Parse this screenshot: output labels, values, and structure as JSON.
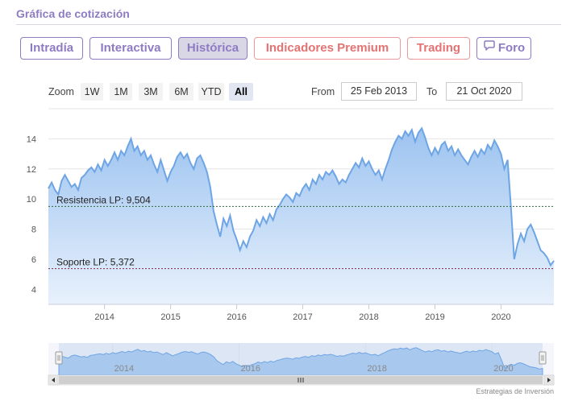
{
  "header": {
    "title": "Gráfica de cotización"
  },
  "tabs": [
    {
      "label": "Intradía",
      "active": false,
      "premium": false
    },
    {
      "label": "Interactiva",
      "active": false,
      "premium": false
    },
    {
      "label": "Histórica",
      "active": true,
      "premium": false
    },
    {
      "label": "Indicadores Premium",
      "active": false,
      "premium": true
    },
    {
      "label": "Trading",
      "active": false,
      "premium": true
    },
    {
      "label": "Foro",
      "active": false,
      "premium": false,
      "icon": "chat-bubble-icon"
    }
  ],
  "range_selector": {
    "zoom_label": "Zoom",
    "buttons": [
      "1W",
      "1M",
      "3M",
      "6M",
      "YTD",
      "All"
    ],
    "selected": "All",
    "from_label": "From",
    "from_value": "25 Feb 2013",
    "to_label": "To",
    "to_value": "21 Oct 2020"
  },
  "chart_data": {
    "type": "area",
    "x_start": 2013.15,
    "x_end": 2020.8,
    "ylim": [
      3,
      16
    ],
    "y_ticks": [
      "14",
      "12",
      "10",
      "8",
      "6",
      "4"
    ],
    "x_ticks": [
      "2014",
      "2015",
      "2016",
      "2017",
      "2018",
      "2019",
      "2020"
    ],
    "series": [
      {
        "points": [
          [
            2013.15,
            10.7
          ],
          [
            2013.2,
            11.1
          ],
          [
            2013.25,
            10.6
          ],
          [
            2013.3,
            10.3
          ],
          [
            2013.35,
            11.2
          ],
          [
            2013.4,
            11.6
          ],
          [
            2013.45,
            11.2
          ],
          [
            2013.5,
            10.8
          ],
          [
            2013.55,
            11.0
          ],
          [
            2013.6,
            10.6
          ],
          [
            2013.65,
            11.4
          ],
          [
            2013.7,
            11.6
          ],
          [
            2013.75,
            11.9
          ],
          [
            2013.8,
            12.1
          ],
          [
            2013.85,
            11.8
          ],
          [
            2013.9,
            12.3
          ],
          [
            2013.95,
            11.9
          ],
          [
            2014.0,
            12.6
          ],
          [
            2014.05,
            12.2
          ],
          [
            2014.1,
            12.6
          ],
          [
            2014.15,
            13.1
          ],
          [
            2014.2,
            12.6
          ],
          [
            2014.25,
            13.2
          ],
          [
            2014.3,
            12.9
          ],
          [
            2014.35,
            13.5
          ],
          [
            2014.4,
            14.0
          ],
          [
            2014.45,
            13.2
          ],
          [
            2014.5,
            13.5
          ],
          [
            2014.55,
            12.9
          ],
          [
            2014.6,
            13.2
          ],
          [
            2014.65,
            12.6
          ],
          [
            2014.7,
            12.9
          ],
          [
            2014.75,
            12.3
          ],
          [
            2014.8,
            11.8
          ],
          [
            2014.85,
            12.6
          ],
          [
            2014.9,
            11.9
          ],
          [
            2014.95,
            11.2
          ],
          [
            2015.0,
            11.8
          ],
          [
            2015.05,
            12.2
          ],
          [
            2015.1,
            12.8
          ],
          [
            2015.15,
            13.1
          ],
          [
            2015.2,
            12.7
          ],
          [
            2015.25,
            13.0
          ],
          [
            2015.3,
            12.4
          ],
          [
            2015.35,
            12.0
          ],
          [
            2015.4,
            12.7
          ],
          [
            2015.45,
            12.9
          ],
          [
            2015.5,
            12.4
          ],
          [
            2015.55,
            11.8
          ],
          [
            2015.6,
            10.8
          ],
          [
            2015.65,
            9.2
          ],
          [
            2015.7,
            8.3
          ],
          [
            2015.75,
            7.5
          ],
          [
            2015.8,
            8.7
          ],
          [
            2015.85,
            8.2
          ],
          [
            2015.9,
            8.9
          ],
          [
            2015.95,
            7.9
          ],
          [
            2016.0,
            7.3
          ],
          [
            2016.05,
            6.6
          ],
          [
            2016.1,
            7.2
          ],
          [
            2016.15,
            6.8
          ],
          [
            2016.2,
            7.5
          ],
          [
            2016.25,
            7.9
          ],
          [
            2016.3,
            8.6
          ],
          [
            2016.35,
            8.2
          ],
          [
            2016.4,
            8.8
          ],
          [
            2016.45,
            8.4
          ],
          [
            2016.5,
            9.0
          ],
          [
            2016.55,
            8.6
          ],
          [
            2016.6,
            9.3
          ],
          [
            2016.65,
            9.6
          ],
          [
            2016.7,
            10.0
          ],
          [
            2016.75,
            10.3
          ],
          [
            2016.8,
            10.1
          ],
          [
            2016.85,
            9.8
          ],
          [
            2016.9,
            10.4
          ],
          [
            2016.95,
            10.2
          ],
          [
            2017.0,
            10.7
          ],
          [
            2017.05,
            11.0
          ],
          [
            2017.1,
            10.6
          ],
          [
            2017.15,
            11.3
          ],
          [
            2017.2,
            11.0
          ],
          [
            2017.25,
            11.6
          ],
          [
            2017.3,
            11.3
          ],
          [
            2017.35,
            11.8
          ],
          [
            2017.4,
            11.6
          ],
          [
            2017.45,
            11.9
          ],
          [
            2017.5,
            11.5
          ],
          [
            2017.55,
            11.0
          ],
          [
            2017.6,
            11.3
          ],
          [
            2017.65,
            11.1
          ],
          [
            2017.7,
            11.6
          ],
          [
            2017.75,
            12.0
          ],
          [
            2017.8,
            12.4
          ],
          [
            2017.85,
            12.1
          ],
          [
            2017.9,
            12.7
          ],
          [
            2017.95,
            12.2
          ],
          [
            2018.0,
            12.5
          ],
          [
            2018.05,
            12.0
          ],
          [
            2018.1,
            11.6
          ],
          [
            2018.15,
            11.9
          ],
          [
            2018.2,
            11.3
          ],
          [
            2018.25,
            12.0
          ],
          [
            2018.3,
            12.6
          ],
          [
            2018.35,
            13.3
          ],
          [
            2018.4,
            13.8
          ],
          [
            2018.45,
            14.2
          ],
          [
            2018.5,
            14.0
          ],
          [
            2018.55,
            14.5
          ],
          [
            2018.6,
            14.2
          ],
          [
            2018.65,
            14.6
          ],
          [
            2018.7,
            13.8
          ],
          [
            2018.75,
            14.4
          ],
          [
            2018.8,
            14.7
          ],
          [
            2018.85,
            14.1
          ],
          [
            2018.9,
            13.4
          ],
          [
            2018.95,
            12.9
          ],
          [
            2019.0,
            13.4
          ],
          [
            2019.05,
            13.0
          ],
          [
            2019.1,
            13.6
          ],
          [
            2019.15,
            13.8
          ],
          [
            2019.2,
            13.2
          ],
          [
            2019.25,
            13.5
          ],
          [
            2019.3,
            12.9
          ],
          [
            2019.35,
            13.3
          ],
          [
            2019.4,
            12.9
          ],
          [
            2019.45,
            12.6
          ],
          [
            2019.5,
            12.3
          ],
          [
            2019.55,
            12.8
          ],
          [
            2019.6,
            13.2
          ],
          [
            2019.65,
            12.8
          ],
          [
            2019.7,
            13.3
          ],
          [
            2019.75,
            13.0
          ],
          [
            2019.8,
            13.6
          ],
          [
            2019.85,
            13.3
          ],
          [
            2019.9,
            13.9
          ],
          [
            2019.95,
            13.5
          ],
          [
            2020.0,
            13.0
          ],
          [
            2020.05,
            12.0
          ],
          [
            2020.1,
            12.6
          ],
          [
            2020.15,
            9.5
          ],
          [
            2020.2,
            6.0
          ],
          [
            2020.25,
            7.0
          ],
          [
            2020.3,
            7.7
          ],
          [
            2020.35,
            7.2
          ],
          [
            2020.4,
            8.0
          ],
          [
            2020.45,
            8.3
          ],
          [
            2020.5,
            7.8
          ],
          [
            2020.55,
            7.2
          ],
          [
            2020.6,
            6.6
          ],
          [
            2020.65,
            6.4
          ],
          [
            2020.7,
            6.1
          ],
          [
            2020.75,
            5.6
          ],
          [
            2020.8,
            5.9
          ]
        ]
      }
    ],
    "plot_lines": [
      {
        "label": "Resistencia LP: 9,504",
        "value": 9.504,
        "color": "#2e6b3a"
      },
      {
        "label": "Soporte LP: 5,372",
        "value": 5.372,
        "color": "#7a2e4a"
      }
    ]
  },
  "navigator": {
    "x_ticks": [
      "2014",
      "2016",
      "2018",
      "2020"
    ],
    "scroll_grip": "grip-lines-icon"
  },
  "credits": "Estrategias de Inversión",
  "colors": {
    "accent": "#8e7cc3",
    "premium": "#e57373",
    "line": "#6ea5e5",
    "fill_top": "#9cc3f0",
    "fill_bottom": "#e8f1fc"
  }
}
